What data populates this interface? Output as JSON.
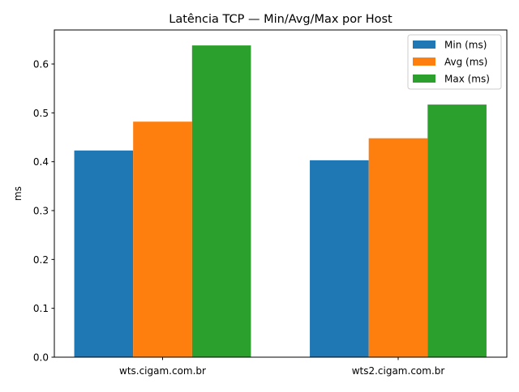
{
  "chart_data": {
    "type": "bar",
    "title": "Latência TCP — Min/Avg/Max por Host",
    "xlabel": "",
    "ylabel": "ms",
    "categories": [
      "wts.cigam.com.br",
      "wts2.cigam.com.br"
    ],
    "series": [
      {
        "name": "Min (ms)",
        "color": "#1f77b4",
        "values": [
          0.423,
          0.403
        ]
      },
      {
        "name": "Avg (ms)",
        "color": "#ff7f0e",
        "values": [
          0.482,
          0.448
        ]
      },
      {
        "name": "Max (ms)",
        "color": "#2ca02c",
        "values": [
          0.638,
          0.517
        ]
      }
    ],
    "ylim": [
      0,
      0.67
    ],
    "yticks": [
      "0.0",
      "0.1",
      "0.2",
      "0.3",
      "0.4",
      "0.5",
      "0.6"
    ],
    "grid": false,
    "legend_position": "top-right"
  }
}
